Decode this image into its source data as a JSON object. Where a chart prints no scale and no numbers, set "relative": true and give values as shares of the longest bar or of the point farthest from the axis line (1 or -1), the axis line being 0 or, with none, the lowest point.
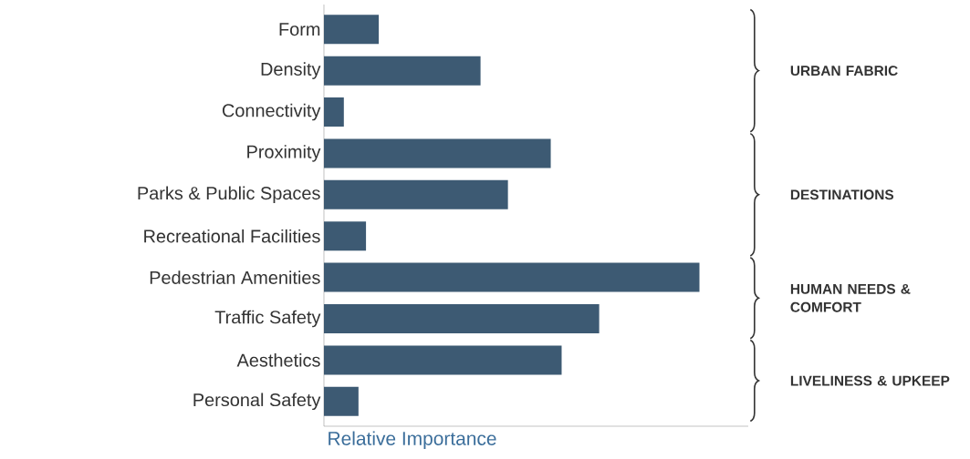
{
  "chart_data": {
    "type": "bar",
    "orientation": "horizontal",
    "relative": true,
    "xlabel": "Relative Importance",
    "color": "#3d5a73",
    "categories": [
      "Form",
      "Density",
      "Connectivity",
      "Proximity",
      "Parks & Public Spaces",
      "Recreational Facilities",
      "Pedestrian Amenities",
      "Traffic Safety",
      "Aesthetics",
      "Personal Safety"
    ],
    "values": [
      0.146,
      0.417,
      0.053,
      0.604,
      0.49,
      0.112,
      1,
      0.733,
      0.633,
      0.092
    ],
    "annotations": [
      "URBAN FABRIC",
      "DESTINATIONS",
      "HUMAN NEEDS & COMFORT",
      "LIVELINESS & UPKEEP"
    ]
  }
}
